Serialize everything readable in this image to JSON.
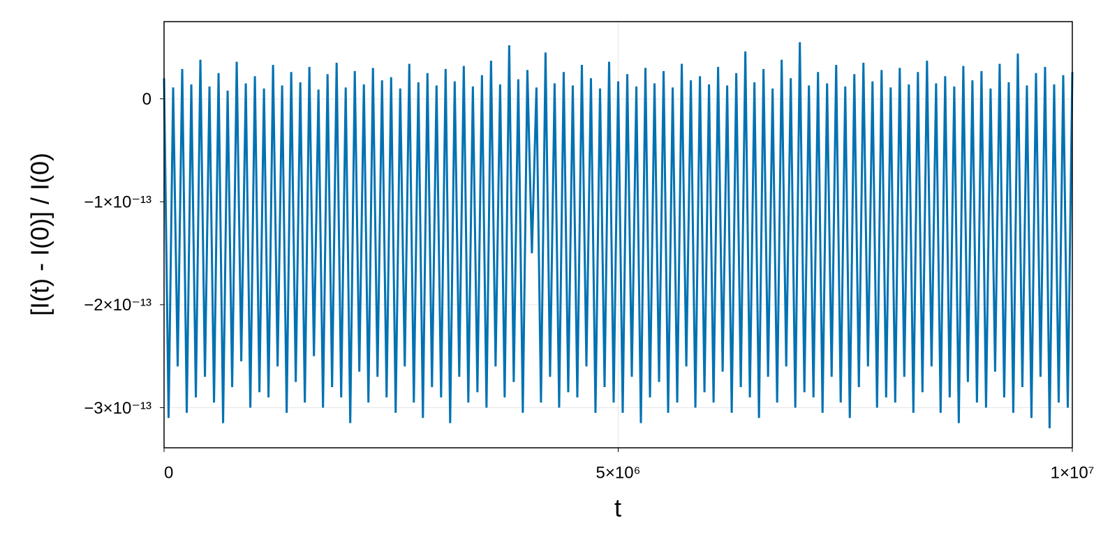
{
  "chart_data": {
    "type": "line",
    "xlabel": "t",
    "ylabel": "[I(t) - I(0)] / I(0)",
    "color": "#0072b2",
    "grid": true,
    "xlim": [
      0,
      10000000
    ],
    "ylim": [
      -3.39e-13,
      7.5e-14
    ],
    "xticks": [
      0,
      {
        "value": 5000000,
        "label": "5×10⁶"
      },
      {
        "value": 10000000,
        "label": "1×10⁷"
      }
    ],
    "yticks": [
      {
        "value": -3e-13,
        "label": "−3×10⁻¹³"
      },
      {
        "value": -2e-13,
        "label": "−2×10⁻¹³"
      },
      {
        "value": -1e-13,
        "label": "−1×10⁻¹³"
      },
      0
    ],
    "x": [
      0,
      50000,
      100000,
      150000,
      200000,
      250000,
      300000,
      350000,
      400000,
      450000,
      500000,
      550000,
      600000,
      650000,
      700000,
      750000,
      800000,
      850000,
      900000,
      950000,
      1000000,
      1050000,
      1100000,
      1150000,
      1200000,
      1250000,
      1300000,
      1350000,
      1400000,
      1450000,
      1500000,
      1550000,
      1600000,
      1650000,
      1700000,
      1750000,
      1800000,
      1850000,
      1900000,
      1950000,
      2000000,
      2050000,
      2100000,
      2150000,
      2200000,
      2250000,
      2300000,
      2350000,
      2400000,
      2450000,
      2500000,
      2550000,
      2600000,
      2650000,
      2700000,
      2750000,
      2800000,
      2850000,
      2900000,
      2950000,
      3000000,
      3050000,
      3100000,
      3150000,
      3200000,
      3250000,
      3300000,
      3350000,
      3400000,
      3450000,
      3500000,
      3550000,
      3600000,
      3650000,
      3700000,
      3750000,
      3800000,
      3850000,
      3900000,
      3950000,
      4000000,
      4050000,
      4100000,
      4150000,
      4200000,
      4250000,
      4300000,
      4350000,
      4400000,
      4450000,
      4500000,
      4550000,
      4600000,
      4650000,
      4700000,
      4750000,
      4800000,
      4850000,
      4900000,
      4950000,
      5000000,
      5050000,
      5100000,
      5150000,
      5200000,
      5250000,
      5300000,
      5350000,
      5400000,
      5450000,
      5500000,
      5550000,
      5600000,
      5650000,
      5700000,
      5750000,
      5800000,
      5850000,
      5900000,
      5950000,
      6000000,
      6050000,
      6100000,
      6150000,
      6200000,
      6250000,
      6300000,
      6350000,
      6400000,
      6450000,
      6500000,
      6550000,
      6600000,
      6650000,
      6700000,
      6750000,
      6800000,
      6850000,
      6900000,
      6950000,
      7000000,
      7050000,
      7100000,
      7150000,
      7200000,
      7250000,
      7300000,
      7350000,
      7400000,
      7450000,
      7500000,
      7550000,
      7600000,
      7650000,
      7700000,
      7750000,
      7800000,
      7850000,
      7900000,
      7950000,
      8000000,
      8050000,
      8100000,
      8150000,
      8200000,
      8250000,
      8300000,
      8350000,
      8400000,
      8450000,
      8500000,
      8550000,
      8600000,
      8650000,
      8700000,
      8750000,
      8800000,
      8850000,
      8900000,
      8950000,
      9000000,
      9050000,
      9100000,
      9150000,
      9200000,
      9250000,
      9300000,
      9350000,
      9400000,
      9450000,
      9500000,
      9550000,
      9600000,
      9650000,
      9700000,
      9750000,
      9800000,
      9850000,
      9900000,
      9950000,
      10000000
    ],
    "values": [
      2e-14,
      -3.1e-13,
      1.1e-14,
      -2.6e-13,
      2.9e-14,
      -3.05e-13,
      1.4e-14,
      -2.9e-13,
      3.8e-14,
      -2.7e-13,
      1.2e-14,
      -2.95e-13,
      2.5e-14,
      -3.15e-13,
      8e-15,
      -2.8e-13,
      3.6e-14,
      -2.55e-13,
      1.5e-14,
      -3e-13,
      2.2e-14,
      -2.85e-13,
      1e-14,
      -2.9e-13,
      3.3e-14,
      -2.6e-13,
      1.3e-14,
      -3.05e-13,
      2.6e-14,
      -2.75e-13,
      1.6e-14,
      -2.95e-13,
      3.1e-14,
      -2.5e-13,
      9e-15,
      -3e-13,
      2.4e-14,
      -2.8e-13,
      3.5e-14,
      -2.9e-13,
      1.1e-14,
      -3.15e-13,
      2.7e-14,
      -2.65e-13,
      1.4e-14,
      -2.95e-13,
      3e-14,
      -2.7e-13,
      1.8e-14,
      -2.9e-13,
      2.1e-14,
      -3.05e-13,
      1e-14,
      -2.6e-13,
      3.4e-14,
      -2.95e-13,
      1.6e-14,
      -3.1e-13,
      2.5e-14,
      -2.8e-13,
      1.3e-14,
      -2.9e-13,
      2.9e-14,
      -3.15e-13,
      1.7e-14,
      -2.7e-13,
      3.2e-14,
      -2.95e-13,
      1.2e-14,
      -2.85e-13,
      2.3e-14,
      -3e-13,
      3.7e-14,
      -2.6e-13,
      1.4e-14,
      -2.9e-13,
      5.2e-14,
      -2.75e-13,
      1.9e-14,
      -3.05e-13,
      2.8e-14,
      -1.5e-13,
      1.1e-14,
      -2.95e-13,
      4.5e-14,
      -2.7e-13,
      1.5e-14,
      -3e-13,
      2.6e-14,
      -2.85e-13,
      1.3e-14,
      -2.9e-13,
      3.3e-14,
      -2.6e-13,
      2e-14,
      -3.05e-13,
      1e-14,
      -2.8e-13,
      3.6e-14,
      -2.95e-13,
      1.7e-14,
      -3.05e-13,
      2.4e-14,
      -2.7e-13,
      1.2e-14,
      -3.15e-13,
      3e-14,
      -2.9e-13,
      1.5e-14,
      -2.75e-13,
      2.7e-14,
      -3.05e-13,
      1.1e-14,
      -2.95e-13,
      3.4e-14,
      -2.6e-13,
      1.8e-14,
      -3e-13,
      2.2e-14,
      -2.85e-13,
      1.4e-14,
      -2.95e-13,
      3.1e-14,
      -2.65e-13,
      1.3e-14,
      -3.05e-13,
      2.5e-14,
      -2.8e-13,
      4.6e-14,
      -2.9e-13,
      1.6e-14,
      -3.1e-13,
      2.9e-14,
      -2.7e-13,
      1e-14,
      -2.95e-13,
      3.8e-14,
      -2.6e-13,
      2e-14,
      -3e-13,
      5.5e-14,
      -2.85e-13,
      1.3e-14,
      -2.9e-13,
      2.6e-14,
      -3.05e-13,
      1.5e-14,
      -2.7e-13,
      3.3e-14,
      -2.95e-13,
      1.2e-14,
      -3.1e-13,
      2.4e-14,
      -2.8e-13,
      3.5e-14,
      -2.6e-13,
      1.7e-14,
      -3e-13,
      2.8e-14,
      -2.9e-13,
      1.1e-14,
      -2.95e-13,
      3e-14,
      -2.7e-13,
      1.4e-14,
      -3.05e-13,
      2.6e-14,
      -2.85e-13,
      3.7e-14,
      -2.6e-13,
      1.5e-14,
      -3.05e-13,
      2.2e-14,
      -2.9e-13,
      1.2e-14,
      -3.15e-13,
      3.2e-14,
      -2.75e-13,
      1.8e-14,
      -2.95e-13,
      2.7e-14,
      -3e-13,
      1e-14,
      -2.65e-13,
      3.4e-14,
      -2.9e-13,
      1.6e-14,
      -3.05e-13,
      4.4e-14,
      -2.8e-13,
      1.3e-14,
      -3.1e-13,
      2.5e-14,
      -2.7e-13,
      3.1e-14,
      -3.2e-13,
      1.4e-14,
      -2.95e-13,
      2.3e-14,
      -3e-13,
      2.6e-14
    ]
  }
}
